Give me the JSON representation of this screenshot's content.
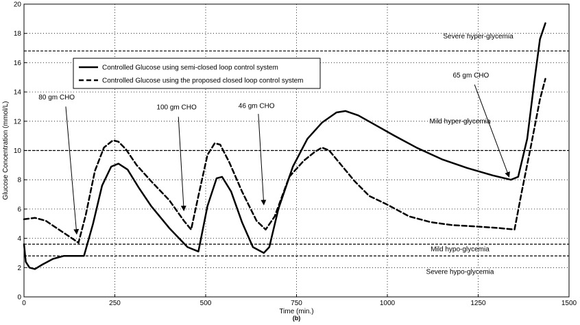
{
  "chart_data": {
    "type": "line",
    "xlabel": "Time (min.)",
    "ylabel": "Glucose Concentration (mmol/L)",
    "caption": "(b)",
    "xlim": [
      0,
      1500
    ],
    "ylim": [
      0,
      20
    ],
    "xticks": [
      0,
      250,
      500,
      750,
      1000,
      1250,
      1500
    ],
    "yticks": [
      0,
      2,
      4,
      6,
      8,
      10,
      12,
      14,
      16,
      18,
      20
    ],
    "grid": true,
    "legend_position": "top-left",
    "series": [
      {
        "name": "Controlled Glucose using semi-closed loop control system",
        "style": "solid",
        "x": [
          0,
          5,
          15,
          30,
          50,
          80,
          110,
          140,
          165,
          190,
          215,
          240,
          260,
          285,
          315,
          350,
          400,
          450,
          480,
          505,
          530,
          545,
          570,
          600,
          630,
          660,
          675,
          700,
          740,
          780,
          820,
          860,
          885,
          920,
          970,
          1020,
          1080,
          1150,
          1220,
          1290,
          1340,
          1360,
          1385,
          1405,
          1420,
          1435
        ],
        "y": [
          3.6,
          2.4,
          2.0,
          1.9,
          2.2,
          2.6,
          2.8,
          2.8,
          2.8,
          5.0,
          7.6,
          8.9,
          9.1,
          8.7,
          7.5,
          6.2,
          4.7,
          3.4,
          3.1,
          6.2,
          8.1,
          8.2,
          7.2,
          5.1,
          3.4,
          3.0,
          3.4,
          6.0,
          8.9,
          10.8,
          11.9,
          12.6,
          12.7,
          12.4,
          11.7,
          11.0,
          10.2,
          9.4,
          8.8,
          8.3,
          8.0,
          8.2,
          10.8,
          14.8,
          17.6,
          18.7
        ]
      },
      {
        "name": "Controlled Glucose using the proposed closed loop control system",
        "style": "dashed",
        "x": [
          0,
          30,
          60,
          90,
          120,
          150,
          170,
          195,
          220,
          245,
          260,
          280,
          310,
          350,
          400,
          440,
          460,
          480,
          505,
          525,
          540,
          565,
          600,
          640,
          665,
          690,
          730,
          770,
          800,
          820,
          840,
          870,
          910,
          950,
          1000,
          1060,
          1120,
          1180,
          1250,
          1310,
          1350,
          1370,
          1395,
          1420,
          1435
        ],
        "y": [
          5.3,
          5.4,
          5.2,
          4.7,
          4.2,
          3.7,
          5.6,
          8.6,
          10.2,
          10.7,
          10.6,
          10.1,
          9.0,
          7.9,
          6.6,
          5.2,
          4.6,
          6.9,
          9.7,
          10.5,
          10.4,
          9.2,
          7.2,
          5.2,
          4.6,
          5.5,
          8.2,
          9.3,
          9.9,
          10.2,
          10.0,
          9.1,
          7.9,
          6.9,
          6.3,
          5.5,
          5.1,
          4.9,
          4.8,
          4.7,
          4.6,
          7.2,
          10.3,
          13.5,
          14.9
        ]
      }
    ],
    "thresholds": [
      {
        "y": 16.8,
        "style": "dashed",
        "label": "Severe hyper-glycemia",
        "label_x": 1250,
        "label_y": 17.8
      },
      {
        "y": 10.0,
        "style": "dashed",
        "label": "Mild hyper-glycemia",
        "label_x": 1200,
        "label_y": 12.0
      },
      {
        "y": 3.6,
        "style": "dashed",
        "label": "Mild hypo-glycemia",
        "label_x": 1200,
        "label_y": 3.25
      },
      {
        "y": 2.8,
        "style": "dashed",
        "label": "Severe hypo-glycemia",
        "label_x": 1200,
        "label_y": 1.7
      }
    ],
    "annotations": [
      {
        "text": "80 gm CHO",
        "text_x": 90,
        "text_y": 13.5,
        "arrow_from": [
          115,
          13.0
        ],
        "arrow_to": [
          145,
          4.3
        ]
      },
      {
        "text": "100 gm CHO",
        "text_x": 420,
        "text_y": 12.8,
        "arrow_from": [
          425,
          12.3
        ],
        "arrow_to": [
          440,
          5.9
        ]
      },
      {
        "text": "46 gm CHO",
        "text_x": 640,
        "text_y": 12.9,
        "arrow_from": [
          645,
          12.5
        ],
        "arrow_to": [
          660,
          6.3
        ]
      },
      {
        "text": "65 gm CHO",
        "text_x": 1230,
        "text_y": 15.0,
        "arrow_from": [
          1240,
          14.5
        ],
        "arrow_to": [
          1335,
          8.2
        ]
      }
    ]
  }
}
